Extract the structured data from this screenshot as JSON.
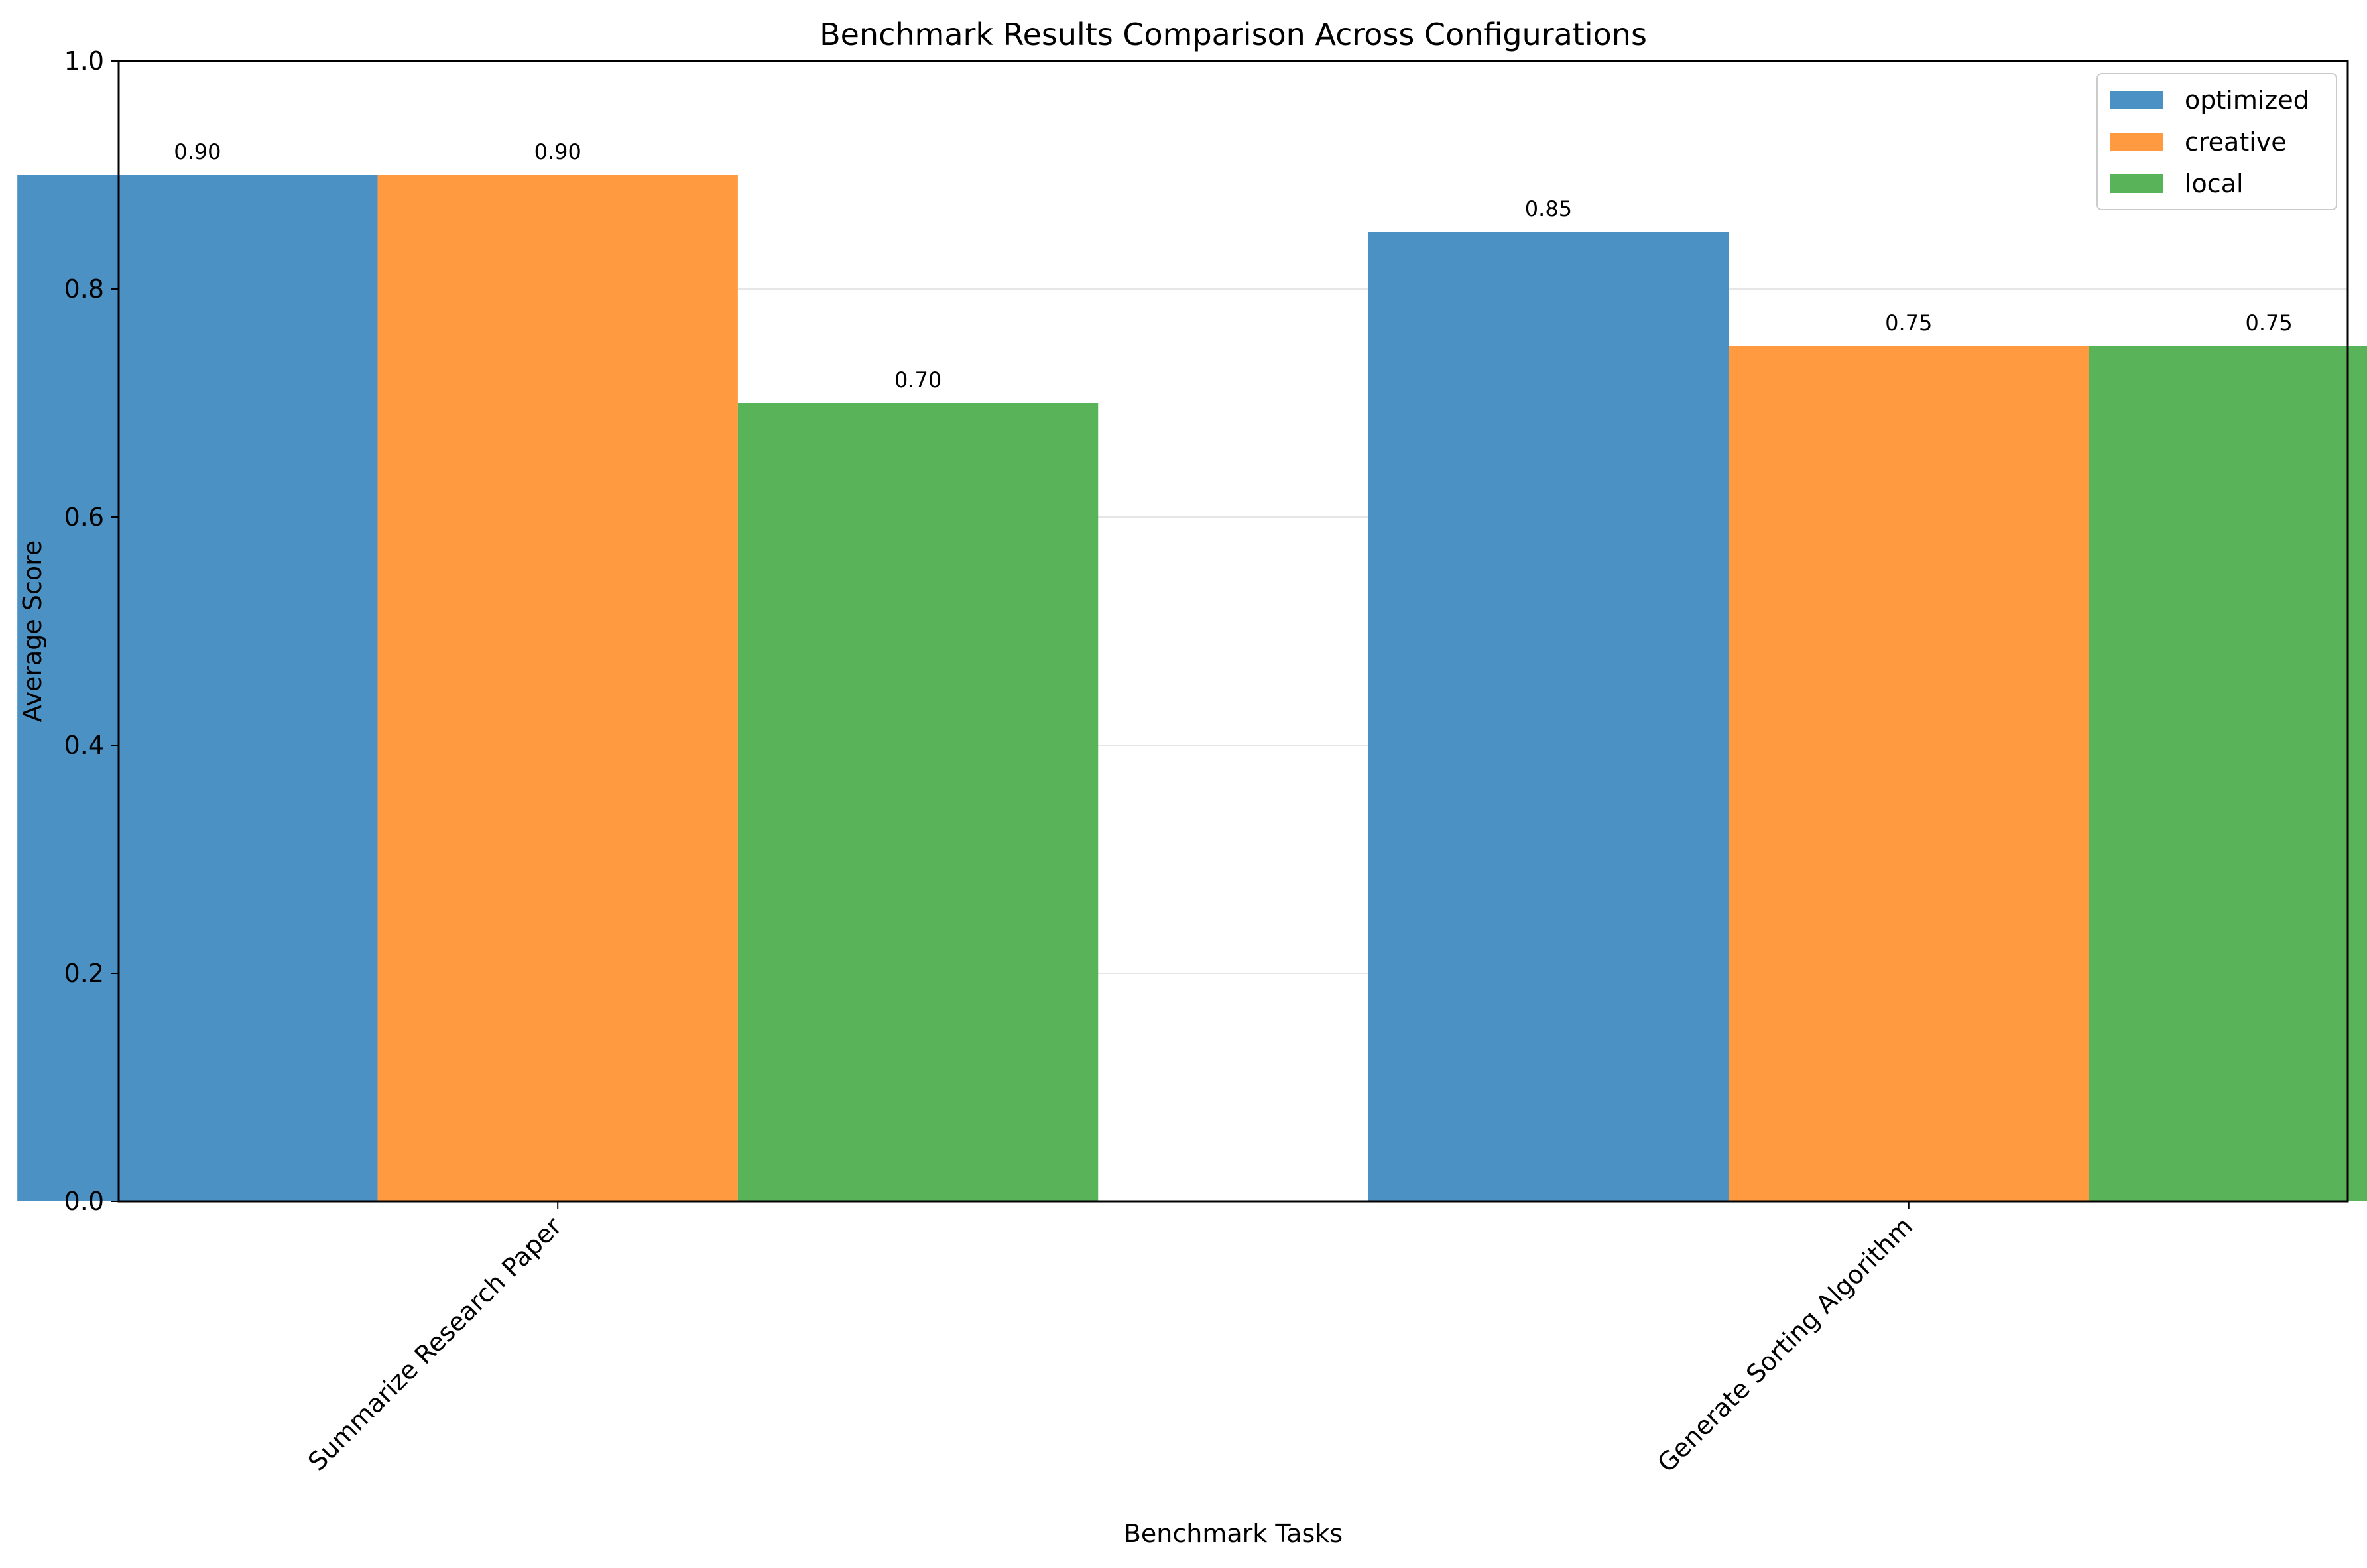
{
  "chart_data": {
    "type": "bar",
    "title": "Benchmark Results Comparison Across Configurations",
    "xlabel": "Benchmark Tasks",
    "ylabel": "Average Score",
    "ylim": [
      0,
      1.0
    ],
    "yticks": [
      "0.0",
      "0.2",
      "0.4",
      "0.6",
      "0.8",
      "1.0"
    ],
    "grid": "y",
    "legend_position": "top-right",
    "categories": [
      "Summarize Research Paper",
      "Generate Sorting Algorithm"
    ],
    "series": [
      {
        "name": "optimized",
        "color": "#4c91c3",
        "values": [
          0.9,
          0.85
        ],
        "labels": [
          "0.90",
          "0.85"
        ]
      },
      {
        "name": "creative",
        "color": "#ff9a40",
        "values": [
          0.9,
          0.75
        ],
        "labels": [
          "0.90",
          "0.75"
        ]
      },
      {
        "name": "local",
        "color": "#59b459",
        "values": [
          0.7,
          0.75
        ],
        "labels": [
          "0.70",
          "0.75"
        ]
      }
    ]
  }
}
